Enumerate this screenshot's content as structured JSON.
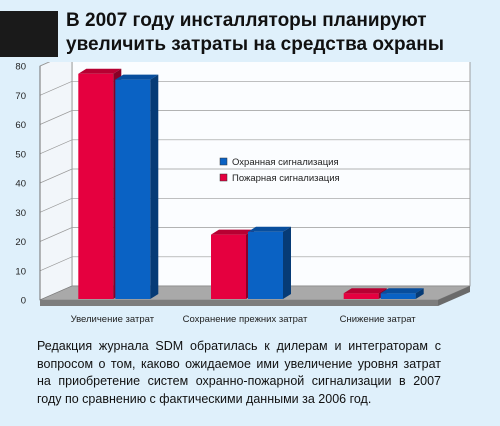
{
  "title": "В 2007 году инсталляторы планируют увеличить затраты на средства охраны",
  "caption": "Редакция журнала SDM обратилась к дилерам и интеграторам с вопросом о том, каково ожидаемое ими увеличение уровня затрат на приобретение систем охранно-пожарной сигнализации в 2007 году по сравнению с фактическими данными за 2006 год.",
  "chart_data": {
    "type": "bar",
    "categories": [
      "Увеличение затрат",
      "Сохранение прежних затрат",
      "Снижение затрат"
    ],
    "series": [
      {
        "name": "Пожарная сигнализация",
        "values": [
          77,
          22,
          2
        ],
        "color": "#e5003f"
      },
      {
        "name": "Охранная сигнализация",
        "values": [
          75,
          23,
          2
        ],
        "color": "#0a62c4"
      }
    ],
    "legend_order": [
      "Охранная сигнализация",
      "Пожарная сигнализация"
    ],
    "yticks": [
      0,
      10,
      20,
      30,
      40,
      50,
      60,
      70,
      80
    ],
    "ylim": [
      0,
      80
    ],
    "grid": true,
    "legend_position": "center-right",
    "style": "3d"
  }
}
